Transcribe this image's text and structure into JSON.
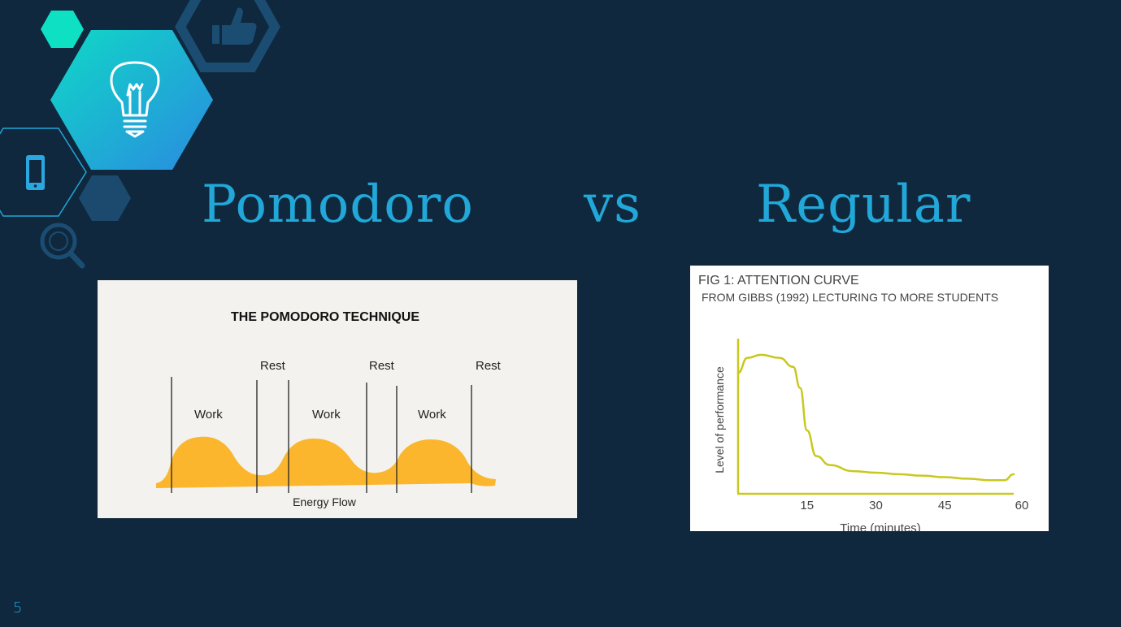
{
  "slide": {
    "title": {
      "word1": "Pomodoro",
      "word2": "vs",
      "word3": "Regular"
    },
    "number": "5"
  },
  "decor_icons": [
    "lightbulb-icon",
    "thumbs-up-icon",
    "phone-icon",
    "magnifier-icon"
  ],
  "colors": {
    "background": "#0f283d",
    "accent": "#21a7d8",
    "teal": "#0ee0c3",
    "hex_dark": "#1c4a6e",
    "energy": "#fbb62e",
    "attention_curve": "#c8c81e"
  },
  "pomodoro_image": {
    "heading": "THE POMODORO TECHNIQUE",
    "work_labels": [
      "Work",
      "Work",
      "Work"
    ],
    "rest_labels": [
      "Rest",
      "Rest",
      "Rest"
    ],
    "caption": "Energy Flow"
  },
  "attention_image": {
    "heading": "FIG 1: ATTENTION CURVE",
    "subheading": "FROM GIBBS (1992) LECTURING TO MORE STUDENTS"
  },
  "chart_data": {
    "type": "line",
    "title": "FIG 1: ATTENTION CURVE",
    "subtitle": "FROM GIBBS (1992) LECTURING TO MORE STUDENTS",
    "xlabel": "Time (minutes)",
    "ylabel": "Level of performance",
    "x_ticks": [
      "15",
      "30",
      "45",
      "60"
    ],
    "xlim": [
      0,
      60
    ],
    "grid": false,
    "legend": "none",
    "series": [
      {
        "x": [
          0,
          2,
          5,
          9,
          12,
          13.5,
          15,
          17,
          20,
          25,
          30,
          35,
          40,
          45,
          50,
          55,
          58,
          60
        ],
        "values": [
          80,
          90,
          92,
          90,
          84,
          70,
          42,
          25,
          19,
          15,
          14,
          13,
          12,
          11,
          10,
          9,
          9,
          13
        ]
      }
    ]
  }
}
